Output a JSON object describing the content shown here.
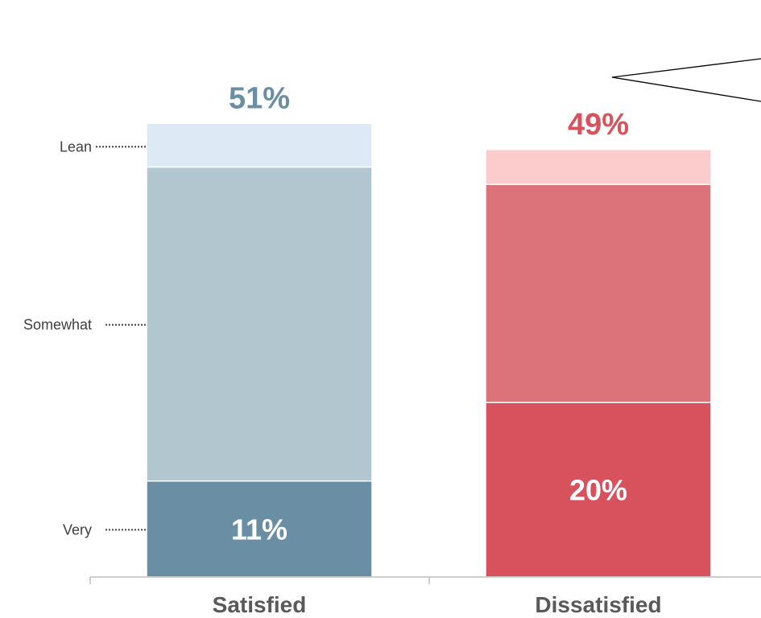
{
  "chart_data": {
    "type": "bar",
    "stacked": true,
    "categories": [
      "Satisfied",
      "Dissatisfied"
    ],
    "levels": [
      "Very",
      "Somewhat",
      "Lean"
    ],
    "level_labels": [
      "Very",
      "Somewhat",
      "Lean"
    ],
    "segments": [
      {
        "category": "Satisfied",
        "values": [
          11,
          36,
          5
        ],
        "total_label": "51%",
        "segment_labels": [
          "11%",
          "",
          ""
        ],
        "colors": [
          "#6a8fa4",
          "#b2c6cf",
          "#dde9f4"
        ],
        "total_color": "#6a8fa4"
      },
      {
        "category": "Dissatisfied",
        "values": [
          20,
          25,
          4
        ],
        "total_label": "49%",
        "segment_labels": [
          "20%",
          "",
          ""
        ],
        "colors": [
          "#d8525d",
          "#dd737a",
          "#fccbcb"
        ],
        "total_color": "#d8525d"
      }
    ],
    "ylim": [
      0,
      52
    ],
    "grid": false,
    "legend": "none"
  }
}
